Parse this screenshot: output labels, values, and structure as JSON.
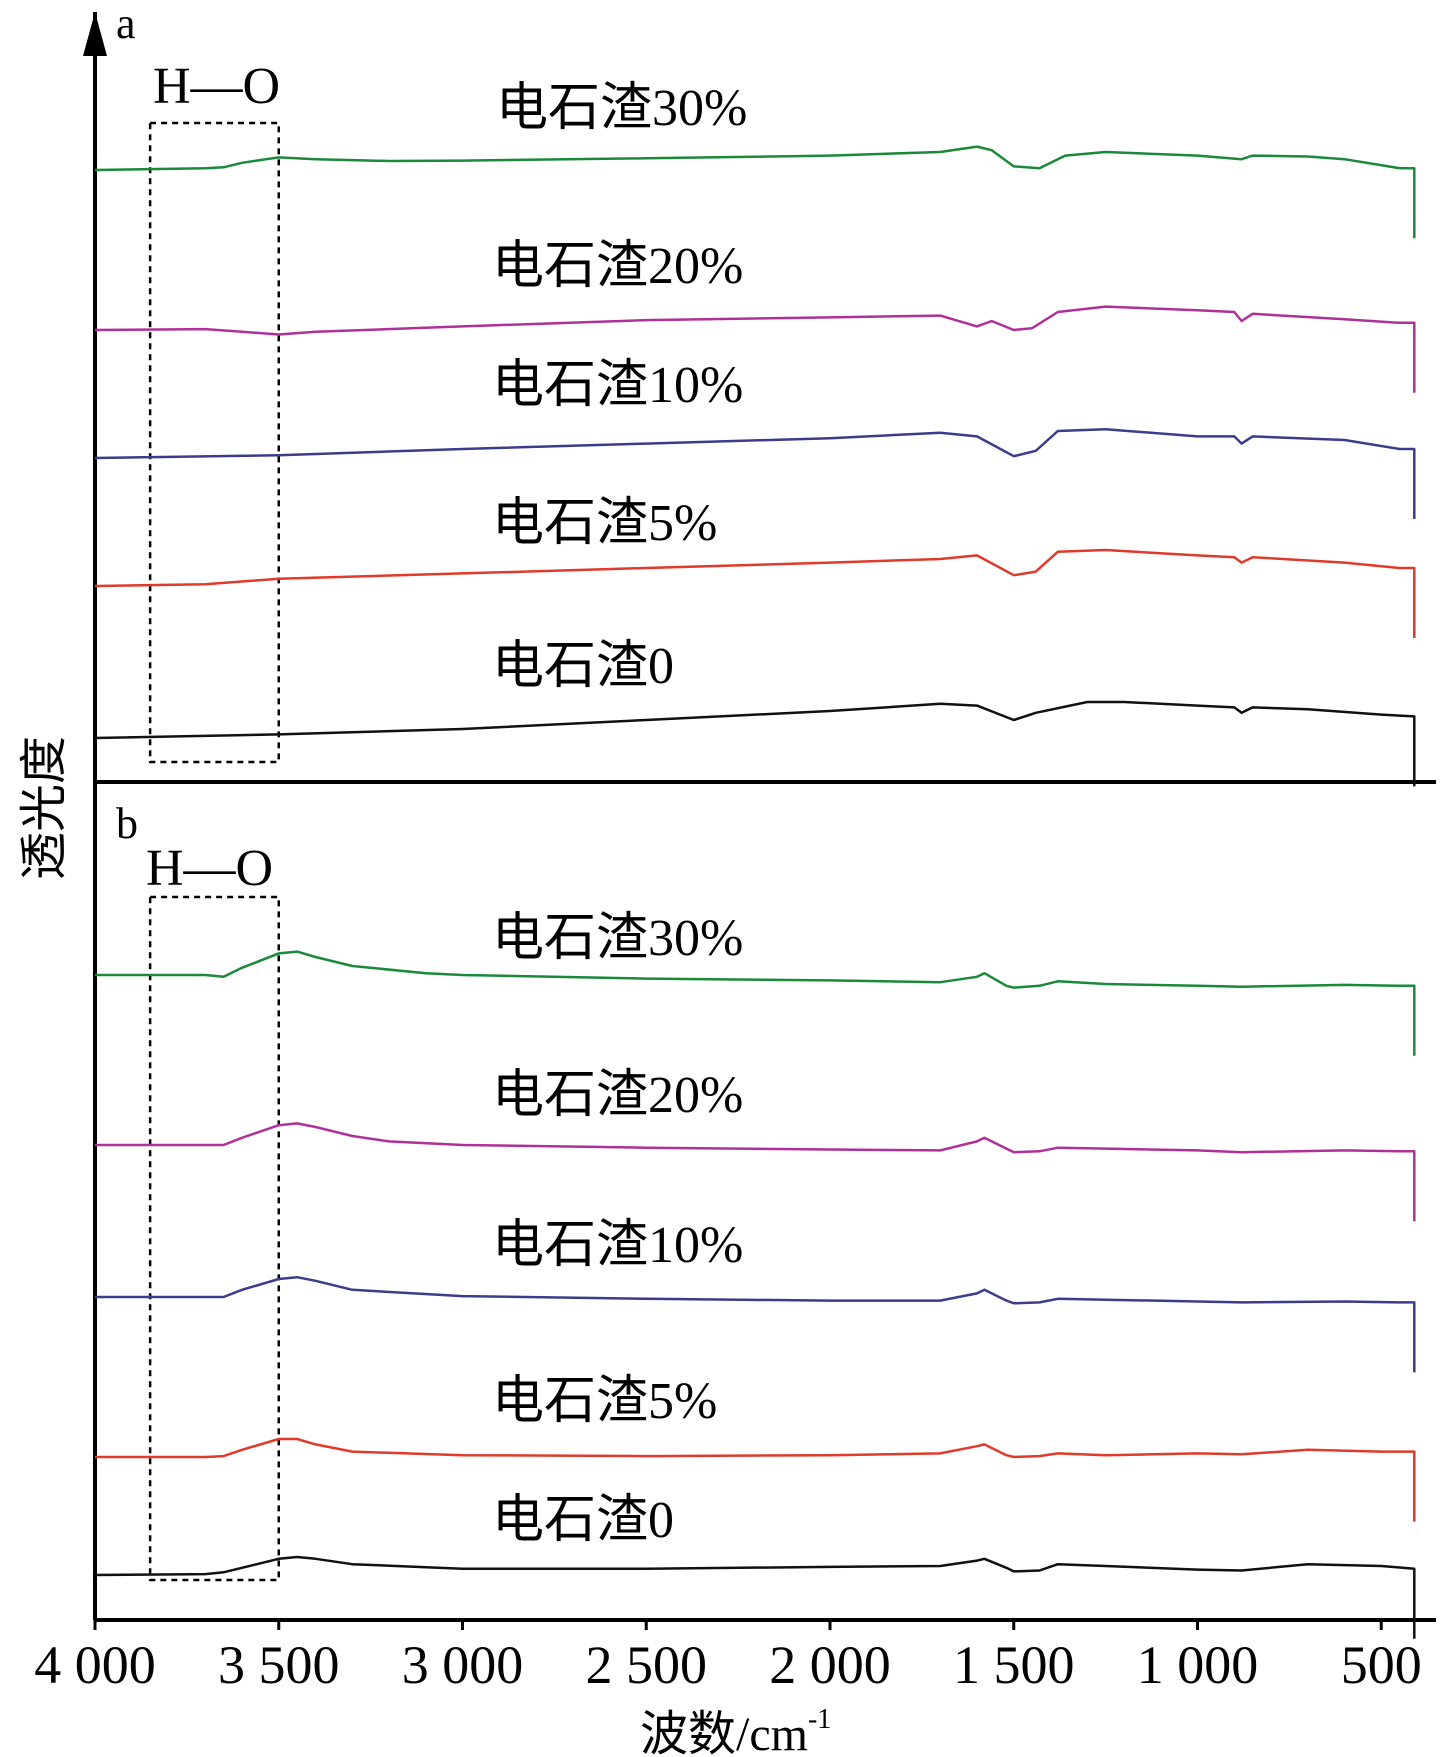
{
  "chart_data": {
    "type": "line",
    "title": "",
    "xlabel": "波数/cm",
    "xlabel_superscript": "-1",
    "ylabel": "透光度",
    "xlim": [
      4000,
      400
    ],
    "x_ticks": [
      4000,
      3500,
      3000,
      2500,
      2000,
      1500,
      1000,
      500
    ],
    "x_tick_labels": [
      "4 000",
      "3 500",
      "3 000",
      "2 500",
      "2 000",
      "1 500",
      "1 000",
      "500"
    ],
    "annotation": "H—O",
    "panels": [
      {
        "id": "a",
        "highlight_range": [
          3850,
          3500
        ],
        "series": [
          {
            "name": "电石渣30%",
            "color": "#1a8a3a",
            "points": [
              [
                4000,
                0.92
              ],
              [
                3700,
                0.93
              ],
              [
                3650,
                0.935
              ],
              [
                3600,
                0.96
              ],
              [
                3500,
                0.99
              ],
              [
                3400,
                0.98
              ],
              [
                3200,
                0.97
              ],
              [
                3000,
                0.972
              ],
              [
                2500,
                0.985
              ],
              [
                2000,
                1.0
              ],
              [
                1700,
                1.02
              ],
              [
                1600,
                1.05
              ],
              [
                1560,
                1.03
              ],
              [
                1500,
                0.94
              ],
              [
                1430,
                0.93
              ],
              [
                1360,
                1.0
              ],
              [
                1250,
                1.02
              ],
              [
                1000,
                1.0
              ],
              [
                880,
                0.98
              ],
              [
                850,
                1.0
              ],
              [
                700,
                0.995
              ],
              [
                600,
                0.98
              ],
              [
                450,
                0.93
              ],
              [
                410,
                0.93
              ]
            ]
          },
          {
            "name": "电石渣20%",
            "color": "#b0309a",
            "points": [
              [
                4000,
                0.93
              ],
              [
                3700,
                0.935
              ],
              [
                3600,
                0.92
              ],
              [
                3500,
                0.905
              ],
              [
                3400,
                0.92
              ],
              [
                3000,
                0.95
              ],
              [
                2500,
                0.985
              ],
              [
                2000,
                1.0
              ],
              [
                1700,
                1.01
              ],
              [
                1600,
                0.95
              ],
              [
                1560,
                0.98
              ],
              [
                1500,
                0.93
              ],
              [
                1450,
                0.94
              ],
              [
                1380,
                1.03
              ],
              [
                1250,
                1.06
              ],
              [
                1000,
                1.04
              ],
              [
                900,
                1.03
              ],
              [
                880,
                0.98
              ],
              [
                850,
                1.02
              ],
              [
                600,
                0.99
              ],
              [
                450,
                0.97
              ],
              [
                410,
                0.97
              ]
            ]
          },
          {
            "name": "电石渣10%",
            "color": "#3c3c8c",
            "points": [
              [
                4000,
                0.92
              ],
              [
                3500,
                0.935
              ],
              [
                3000,
                0.97
              ],
              [
                2500,
                1.0
              ],
              [
                2000,
                1.03
              ],
              [
                1700,
                1.06
              ],
              [
                1600,
                1.04
              ],
              [
                1500,
                0.93
              ],
              [
                1440,
                0.96
              ],
              [
                1380,
                1.07
              ],
              [
                1250,
                1.08
              ],
              [
                1000,
                1.04
              ],
              [
                900,
                1.04
              ],
              [
                880,
                1.0
              ],
              [
                850,
                1.04
              ],
              [
                600,
                1.02
              ],
              [
                450,
                0.97
              ],
              [
                410,
                0.97
              ]
            ]
          },
          {
            "name": "电石渣5%",
            "color": "#e03a2a",
            "points": [
              [
                4000,
                0.92
              ],
              [
                3700,
                0.93
              ],
              [
                3500,
                0.96
              ],
              [
                3000,
                0.99
              ],
              [
                2500,
                1.02
              ],
              [
                2000,
                1.05
              ],
              [
                1700,
                1.07
              ],
              [
                1600,
                1.09
              ],
              [
                1500,
                0.98
              ],
              [
                1440,
                1.0
              ],
              [
                1380,
                1.11
              ],
              [
                1250,
                1.12
              ],
              [
                1000,
                1.09
              ],
              [
                900,
                1.08
              ],
              [
                880,
                1.05
              ],
              [
                850,
                1.08
              ],
              [
                600,
                1.05
              ],
              [
                450,
                1.02
              ],
              [
                410,
                1.02
              ]
            ]
          },
          {
            "name": "电石渣0",
            "color": "#111111",
            "points": [
              [
                4000,
                0.92
              ],
              [
                3500,
                0.94
              ],
              [
                3000,
                0.97
              ],
              [
                2500,
                1.02
              ],
              [
                2000,
                1.07
              ],
              [
                1700,
                1.11
              ],
              [
                1600,
                1.1
              ],
              [
                1500,
                1.02
              ],
              [
                1440,
                1.06
              ],
              [
                1300,
                1.12
              ],
              [
                1200,
                1.12
              ],
              [
                1000,
                1.1
              ],
              [
                900,
                1.09
              ],
              [
                880,
                1.06
              ],
              [
                850,
                1.09
              ],
              [
                700,
                1.08
              ],
              [
                500,
                1.05
              ],
              [
                410,
                1.04
              ]
            ]
          }
        ]
      },
      {
        "id": "b",
        "highlight_range": [
          3850,
          3500
        ],
        "series": [
          {
            "name": "电石渣30%",
            "color": "#1a8a3a",
            "points": [
              [
                4000,
                1.02
              ],
              [
                3700,
                1.02
              ],
              [
                3650,
                1.01
              ],
              [
                3600,
                1.06
              ],
              [
                3500,
                1.14
              ],
              [
                3450,
                1.15
              ],
              [
                3400,
                1.12
              ],
              [
                3300,
                1.07
              ],
              [
                3100,
                1.03
              ],
              [
                3000,
                1.02
              ],
              [
                2500,
                1.0
              ],
              [
                2000,
                0.99
              ],
              [
                1700,
                0.98
              ],
              [
                1600,
                1.01
              ],
              [
                1580,
                1.03
              ],
              [
                1520,
                0.96
              ],
              [
                1500,
                0.95
              ],
              [
                1430,
                0.96
              ],
              [
                1380,
                0.985
              ],
              [
                1250,
                0.97
              ],
              [
                1000,
                0.96
              ],
              [
                880,
                0.955
              ],
              [
                600,
                0.965
              ],
              [
                450,
                0.96
              ],
              [
                410,
                0.96
              ]
            ]
          },
          {
            "name": "电石渣20%",
            "color": "#b0309a",
            "points": [
              [
                4000,
                1.0
              ],
              [
                3700,
                1.0
              ],
              [
                3650,
                1.0
              ],
              [
                3600,
                1.04
              ],
              [
                3500,
                1.11
              ],
              [
                3450,
                1.12
              ],
              [
                3400,
                1.1
              ],
              [
                3300,
                1.05
              ],
              [
                3200,
                1.02
              ],
              [
                3000,
                1.0
              ],
              [
                2500,
                0.985
              ],
              [
                2000,
                0.975
              ],
              [
                1700,
                0.97
              ],
              [
                1600,
                1.02
              ],
              [
                1580,
                1.04
              ],
              [
                1520,
                0.98
              ],
              [
                1500,
                0.96
              ],
              [
                1430,
                0.965
              ],
              [
                1380,
                0.985
              ],
              [
                1250,
                0.98
              ],
              [
                1000,
                0.97
              ],
              [
                880,
                0.96
              ],
              [
                600,
                0.97
              ],
              [
                450,
                0.965
              ],
              [
                410,
                0.965
              ]
            ]
          },
          {
            "name": "电石渣10%",
            "color": "#3c3c8c",
            "points": [
              [
                4000,
                0.98
              ],
              [
                3700,
                0.98
              ],
              [
                3650,
                0.98
              ],
              [
                3600,
                1.02
              ],
              [
                3500,
                1.08
              ],
              [
                3450,
                1.09
              ],
              [
                3400,
                1.07
              ],
              [
                3300,
                1.02
              ],
              [
                3000,
                0.985
              ],
              [
                2500,
                0.97
              ],
              [
                2000,
                0.96
              ],
              [
                1700,
                0.96
              ],
              [
                1600,
                1.0
              ],
              [
                1580,
                1.02
              ],
              [
                1520,
                0.96
              ],
              [
                1500,
                0.945
              ],
              [
                1430,
                0.95
              ],
              [
                1380,
                0.97
              ],
              [
                1250,
                0.965
              ],
              [
                1000,
                0.955
              ],
              [
                880,
                0.95
              ],
              [
                600,
                0.955
              ],
              [
                450,
                0.95
              ],
              [
                410,
                0.95
              ]
            ]
          },
          {
            "name": "电石渣5%",
            "color": "#e03a2a",
            "points": [
              [
                4000,
                0.98
              ],
              [
                3700,
                0.98
              ],
              [
                3650,
                0.985
              ],
              [
                3600,
                1.02
              ],
              [
                3500,
                1.08
              ],
              [
                3450,
                1.08
              ],
              [
                3400,
                1.05
              ],
              [
                3300,
                1.01
              ],
              [
                3000,
                0.99
              ],
              [
                2500,
                0.985
              ],
              [
                2000,
                0.99
              ],
              [
                1700,
                1.0
              ],
              [
                1600,
                1.04
              ],
              [
                1580,
                1.05
              ],
              [
                1520,
                0.99
              ],
              [
                1500,
                0.98
              ],
              [
                1430,
                0.985
              ],
              [
                1380,
                1.0
              ],
              [
                1250,
                0.99
              ],
              [
                1000,
                1.0
              ],
              [
                880,
                0.995
              ],
              [
                700,
                1.02
              ],
              [
                500,
                1.01
              ],
              [
                410,
                1.01
              ]
            ]
          },
          {
            "name": "电石渣0",
            "color": "#111111",
            "points": [
              [
                4000,
                0.94
              ],
              [
                3700,
                0.945
              ],
              [
                3650,
                0.955
              ],
              [
                3600,
                0.98
              ],
              [
                3500,
                1.03
              ],
              [
                3450,
                1.04
              ],
              [
                3400,
                1.03
              ],
              [
                3300,
                1.0
              ],
              [
                3000,
                0.975
              ],
              [
                2500,
                0.975
              ],
              [
                2000,
                0.985
              ],
              [
                1700,
                0.99
              ],
              [
                1600,
                1.02
              ],
              [
                1580,
                1.03
              ],
              [
                1520,
                0.98
              ],
              [
                1500,
                0.96
              ],
              [
                1430,
                0.965
              ],
              [
                1380,
                1.0
              ],
              [
                1250,
                0.99
              ],
              [
                1000,
                0.97
              ],
              [
                880,
                0.965
              ],
              [
                700,
                1.0
              ],
              [
                500,
                0.99
              ],
              [
                410,
                0.975
              ]
            ]
          }
        ]
      }
    ]
  }
}
